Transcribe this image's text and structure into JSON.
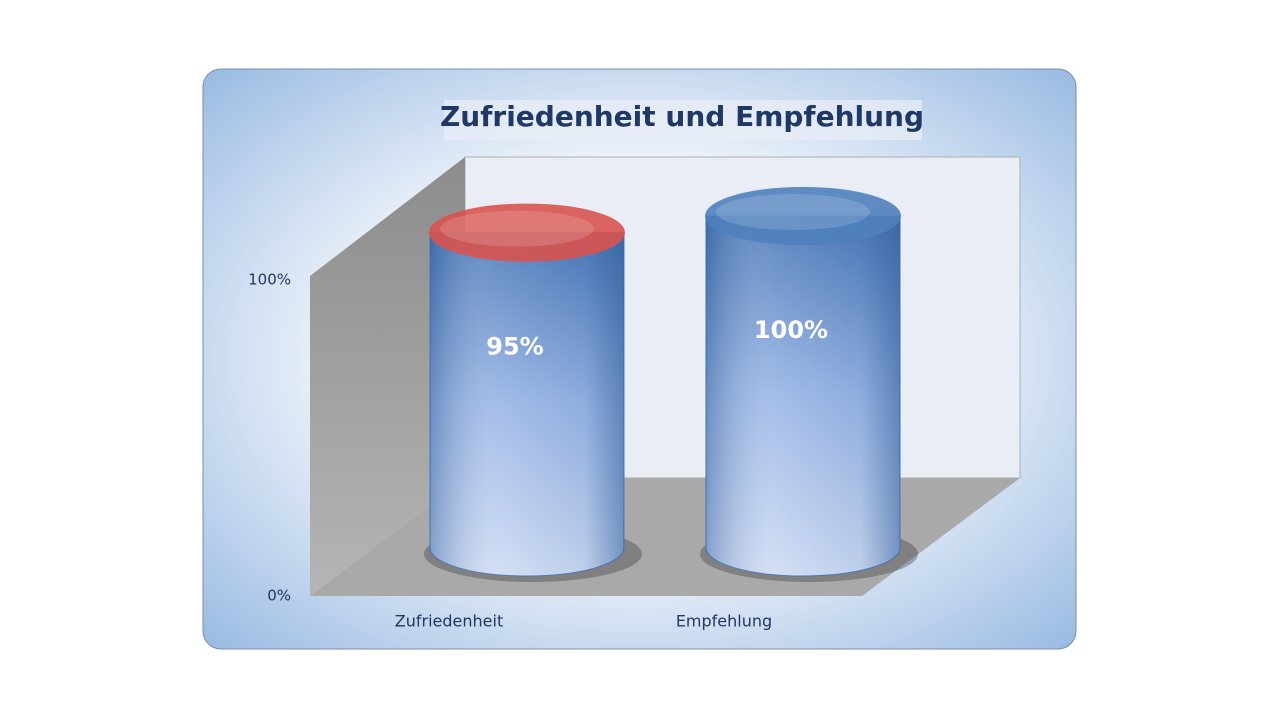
{
  "chart_data": {
    "type": "bar",
    "title": "Zufriedenheit und Empfehlung",
    "categories": [
      "Zufriedenheit",
      "Empfehlung"
    ],
    "values": [
      95,
      100
    ],
    "value_labels": [
      "95%",
      "100%"
    ],
    "color": "#4f81bd",
    "cap_colors": [
      "#d9534f",
      "#4f81bd"
    ],
    "ylim": [
      0,
      100
    ],
    "yticks": [
      {
        "value": 0,
        "label": "0%"
      },
      {
        "value": 100,
        "label": "100%"
      }
    ]
  }
}
